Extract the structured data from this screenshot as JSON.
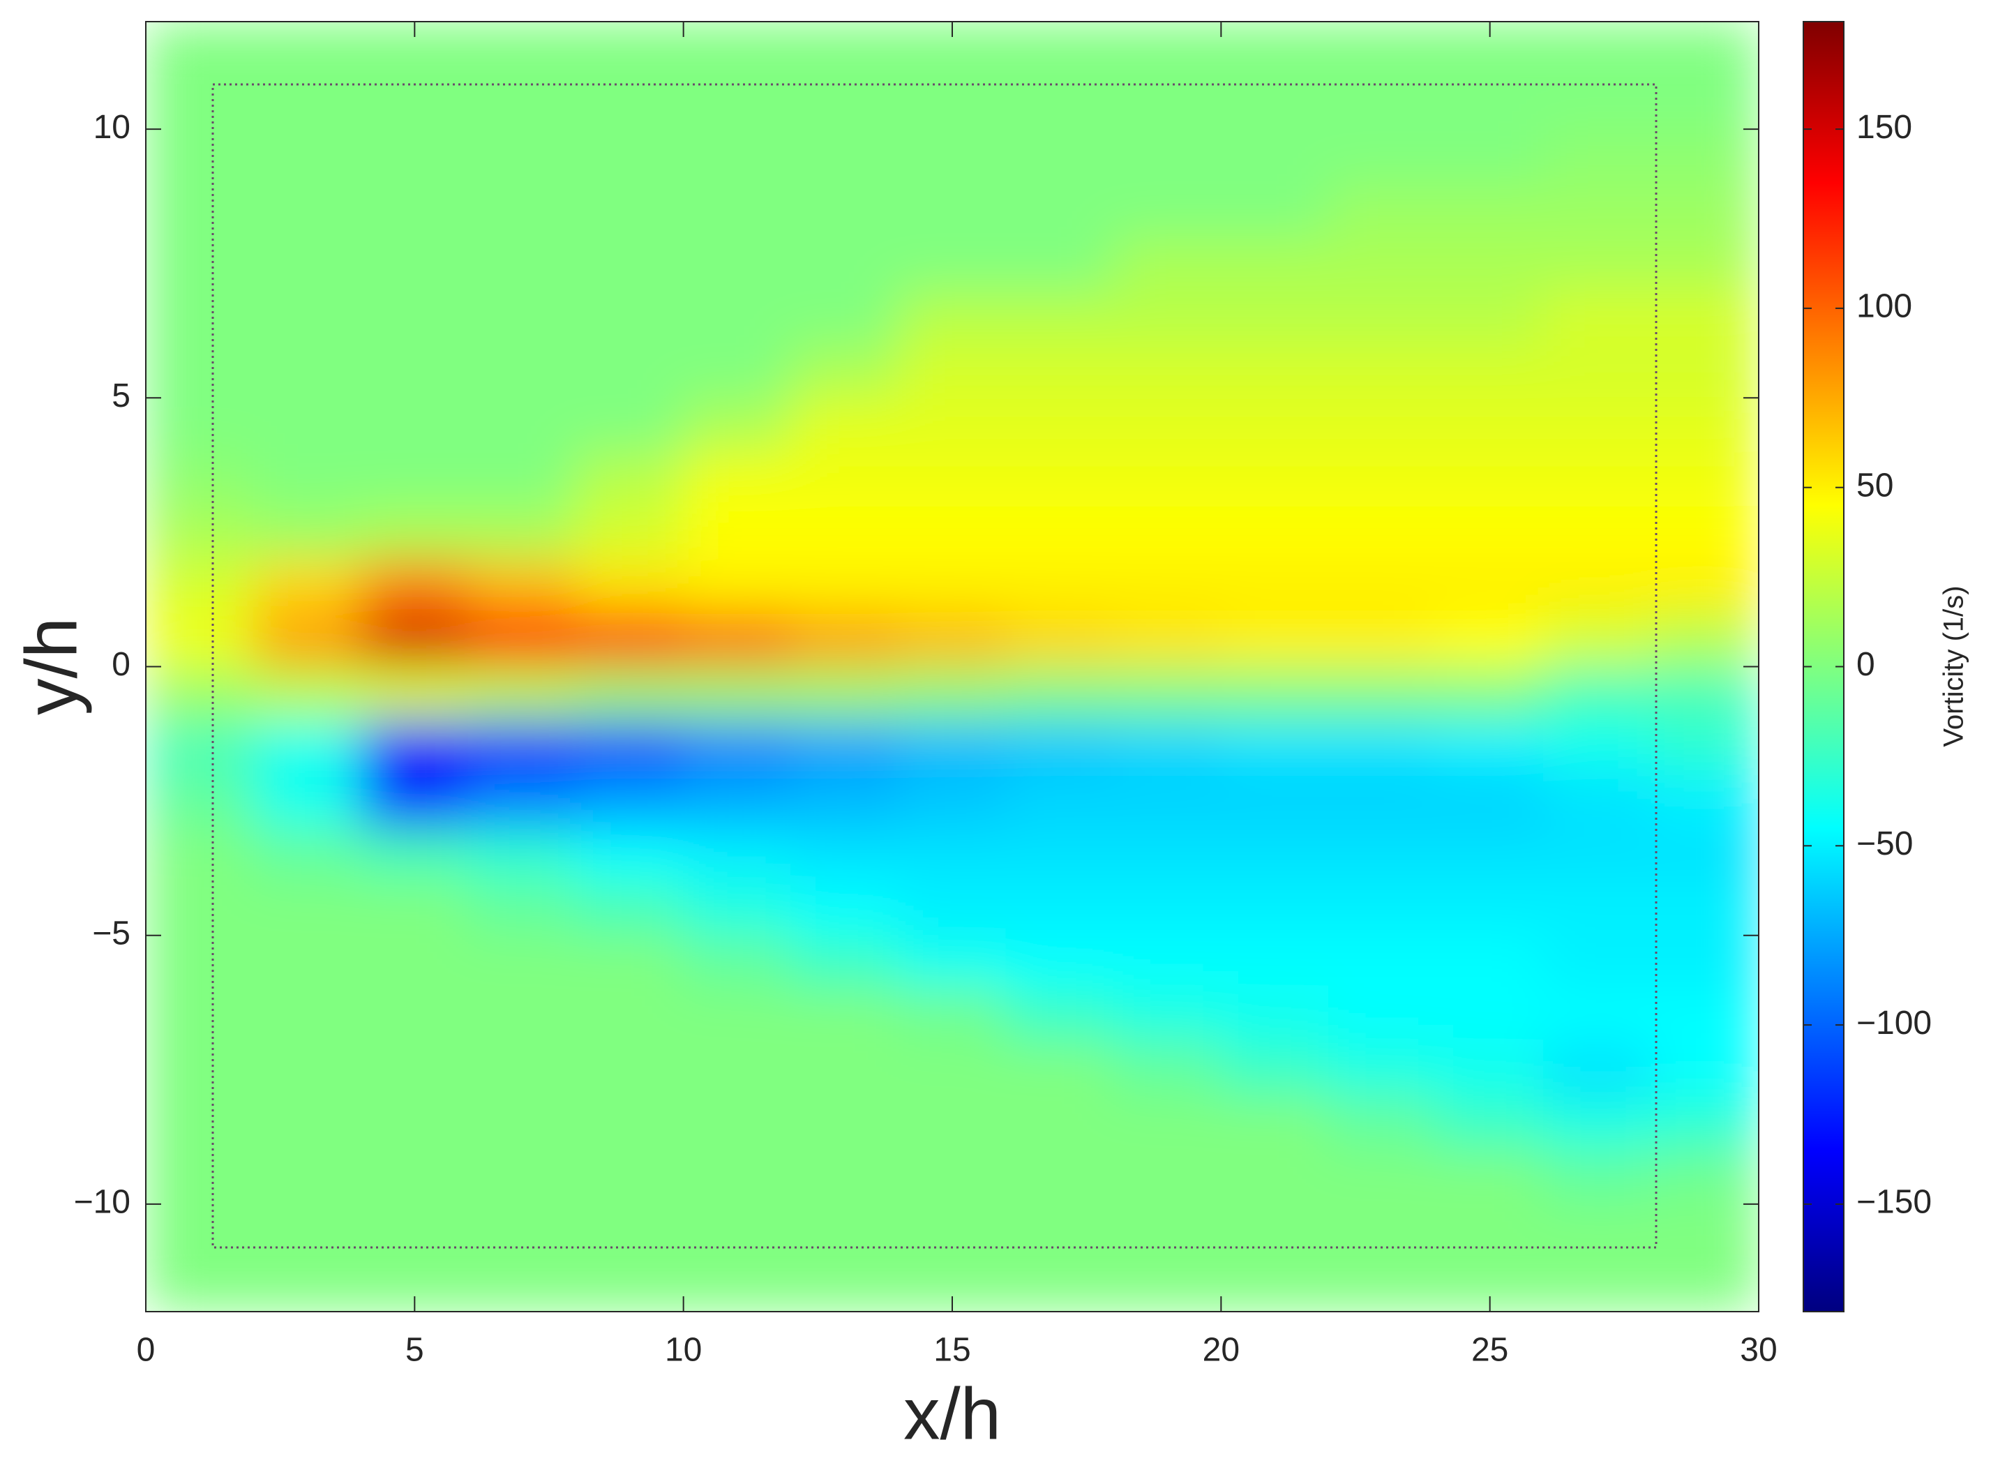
{
  "chart_data": {
    "type": "heatmap",
    "xlabel": "x/h",
    "ylabel": "y/h",
    "colorbar_label": "Vorticity (1/s)",
    "colormap": "jet",
    "xlim": [
      0,
      30
    ],
    "ylim": [
      -12,
      12
    ],
    "xticks": [
      0,
      5,
      10,
      15,
      20,
      25,
      30
    ],
    "yticks": [
      {
        "value": -10,
        "label": "−10"
      },
      {
        "value": -5,
        "label": "−5"
      },
      0,
      5,
      10
    ],
    "zlim": [
      -180,
      180
    ],
    "zticks": [
      {
        "value": -150,
        "label": "−150"
      },
      {
        "value": -100,
        "label": "−100"
      },
      {
        "value": -50,
        "label": "−50"
      },
      0,
      50,
      100,
      150
    ],
    "x": [
      1,
      3,
      5,
      7,
      9,
      11,
      13,
      15,
      17,
      19,
      21,
      23,
      25,
      27,
      29
    ],
    "y": [
      11.5,
      10.5,
      9.5,
      8.5,
      7.5,
      6.5,
      5.5,
      4.5,
      3.5,
      2.5,
      1.5,
      0.5,
      -0.5,
      -1.5,
      -2.5,
      -3.5,
      -4.5,
      -5.5,
      -6.5,
      -7.5,
      -8.5,
      -9.5,
      -10.5,
      -11.5
    ],
    "z": [
      [
        0,
        0,
        0,
        0,
        0,
        0,
        0,
        0,
        0,
        0,
        0,
        0,
        0,
        0,
        0
      ],
      [
        0,
        0,
        0,
        0,
        0,
        0,
        0,
        0,
        0,
        0,
        0,
        0,
        0,
        0,
        0
      ],
      [
        0,
        0,
        0,
        0,
        0,
        0,
        0,
        0,
        0,
        0,
        0,
        0,
        0,
        5,
        5
      ],
      [
        0,
        0,
        0,
        0,
        0,
        0,
        0,
        0,
        0,
        0,
        0,
        10,
        10,
        10,
        10
      ],
      [
        0,
        0,
        0,
        0,
        0,
        0,
        0,
        0,
        0,
        15,
        15,
        15,
        15,
        15,
        15
      ],
      [
        0,
        0,
        0,
        0,
        0,
        0,
        0,
        20,
        20,
        20,
        20,
        20,
        20,
        30,
        30
      ],
      [
        0,
        0,
        0,
        0,
        0,
        0,
        15,
        30,
        30,
        30,
        30,
        30,
        30,
        30,
        30
      ],
      [
        0,
        0,
        0,
        0,
        0,
        15,
        35,
        35,
        35,
        35,
        35,
        35,
        35,
        35,
        35
      ],
      [
        5,
        0,
        0,
        0,
        20,
        40,
        40,
        40,
        40,
        40,
        40,
        40,
        40,
        40,
        40
      ],
      [
        15,
        10,
        15,
        15,
        30,
        45,
        45,
        45,
        45,
        45,
        45,
        45,
        45,
        45,
        45
      ],
      [
        30,
        60,
        90,
        70,
        55,
        50,
        50,
        50,
        50,
        50,
        50,
        50,
        50,
        50,
        50
      ],
      [
        40,
        80,
        150,
        130,
        120,
        100,
        80,
        70,
        60,
        55,
        50,
        50,
        45,
        30,
        20
      ],
      [
        10,
        20,
        30,
        20,
        10,
        10,
        10,
        5,
        0,
        0,
        0,
        0,
        0,
        -20,
        -20
      ],
      [
        -20,
        -40,
        -130,
        -120,
        -110,
        -90,
        -80,
        -70,
        -65,
        -60,
        -55,
        -55,
        -50,
        -40,
        -30
      ],
      [
        -10,
        -40,
        -120,
        -90,
        -80,
        -75,
        -70,
        -65,
        -60,
        -60,
        -60,
        -60,
        -60,
        -55,
        -50
      ],
      [
        0,
        -10,
        -20,
        -30,
        -45,
        -50,
        -55,
        -55,
        -55,
        -55,
        -55,
        -55,
        -55,
        -55,
        -55
      ],
      [
        0,
        0,
        0,
        -10,
        -20,
        -35,
        -45,
        -50,
        -50,
        -50,
        -50,
        -50,
        -50,
        -50,
        -50
      ],
      [
        0,
        0,
        0,
        0,
        0,
        -10,
        -25,
        -40,
        -45,
        -45,
        -45,
        -45,
        -45,
        -50,
        -50
      ],
      [
        0,
        0,
        0,
        0,
        0,
        0,
        0,
        -5,
        -25,
        -35,
        -40,
        -45,
        -45,
        -45,
        -45
      ],
      [
        0,
        0,
        0,
        0,
        0,
        0,
        0,
        0,
        0,
        -10,
        -25,
        -35,
        -40,
        -55,
        -45
      ],
      [
        0,
        0,
        0,
        0,
        0,
        0,
        0,
        0,
        0,
        0,
        0,
        -10,
        -25,
        -35,
        -30
      ],
      [
        0,
        0,
        0,
        0,
        0,
        0,
        0,
        0,
        0,
        0,
        0,
        0,
        0,
        -10,
        -5
      ],
      [
        0,
        0,
        0,
        0,
        0,
        0,
        0,
        0,
        0,
        0,
        0,
        0,
        0,
        0,
        0
      ],
      [
        0,
        0,
        0,
        0,
        0,
        0,
        0,
        0,
        0,
        0,
        0,
        0,
        0,
        0,
        0
      ]
    ]
  }
}
